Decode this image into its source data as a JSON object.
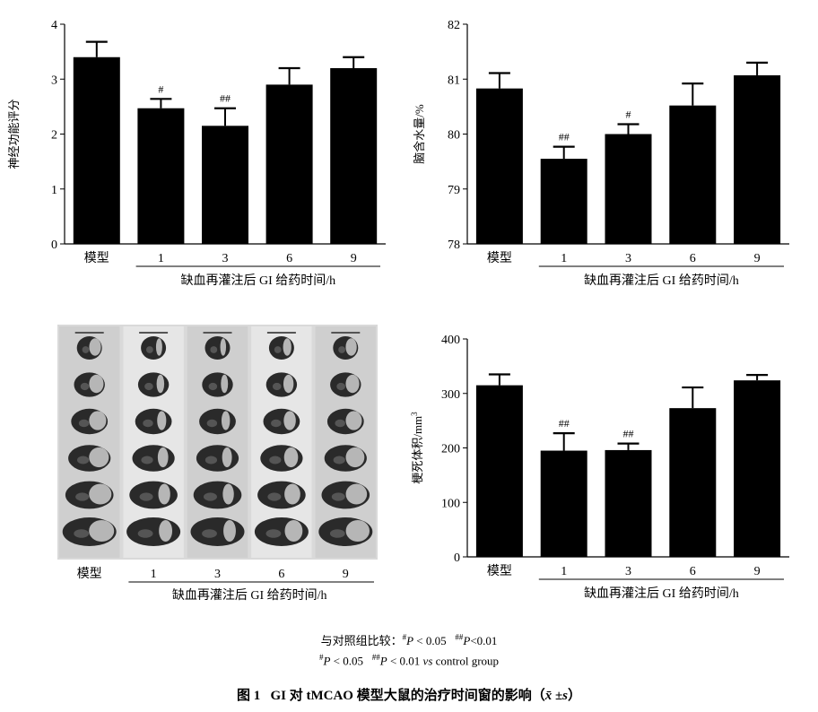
{
  "chart_data": [
    {
      "type": "bar",
      "ylabel": "神经功能评分",
      "xlabel": "缺血再灌注后 GI 给药时间/h",
      "categories": [
        "模型",
        "1",
        "3",
        "6",
        "9"
      ],
      "values": [
        3.4,
        2.47,
        2.15,
        2.9,
        3.2
      ],
      "errors": [
        0.28,
        0.17,
        0.32,
        0.3,
        0.2
      ],
      "annotations": [
        "",
        "#",
        "##",
        "",
        ""
      ],
      "ylim": [
        0,
        4
      ],
      "yticks": [
        "0",
        "1",
        "2",
        "3",
        "4"
      ]
    },
    {
      "type": "bar",
      "ylabel": "脑含水量/%",
      "xlabel": "缺血再灌注后 GI 给药时间/h",
      "categories": [
        "模型",
        "1",
        "3",
        "6",
        "9"
      ],
      "values": [
        80.83,
        79.55,
        80.0,
        80.52,
        81.07
      ],
      "errors": [
        0.28,
        0.22,
        0.18,
        0.4,
        0.23
      ],
      "annotations": [
        "",
        "##",
        "#",
        "",
        ""
      ],
      "ylim": [
        78,
        82
      ],
      "yticks": [
        "78",
        "79",
        "80",
        "81",
        "82"
      ]
    },
    {
      "type": "bar",
      "ylabel": "梗死体积/mm",
      "ylabel_sup": "3",
      "xlabel": "缺血再灌注后 GI 给药时间/h",
      "categories": [
        "模型",
        "1",
        "3",
        "6",
        "9"
      ],
      "values": [
        315,
        195,
        196,
        273,
        324
      ],
      "errors": [
        20,
        32,
        12,
        38,
        10
      ],
      "annotations": [
        "",
        "##",
        "##",
        "",
        ""
      ],
      "ylim": [
        0,
        400
      ],
      "yticks": [
        "0",
        "100",
        "200",
        "300",
        "400"
      ]
    }
  ],
  "photo_panel": {
    "categories": [
      "模型",
      "1",
      "3",
      "6",
      "9"
    ],
    "xlabel": "缺血再灌注后 GI 给药时间/h"
  },
  "notes": {
    "line1_prefix": "与对照组比较：",
    "p1": "P",
    "lt1": "< 0.05",
    "p2": "P",
    "lt2": "<0.01",
    "line2_p1": "P",
    "line2_lt1": "< 0.05",
    "line2_p2": "P",
    "line2_lt2": "< 0.01",
    "vs": "vs",
    "control": "control group",
    "mark1": "#",
    "mark2": "##"
  },
  "caption": {
    "label": "图 1",
    "text": "GI 对 tMCAO 模型大鼠的治疗时间窗的影响（",
    "stat": "x̄ ±s",
    "close": "）"
  }
}
